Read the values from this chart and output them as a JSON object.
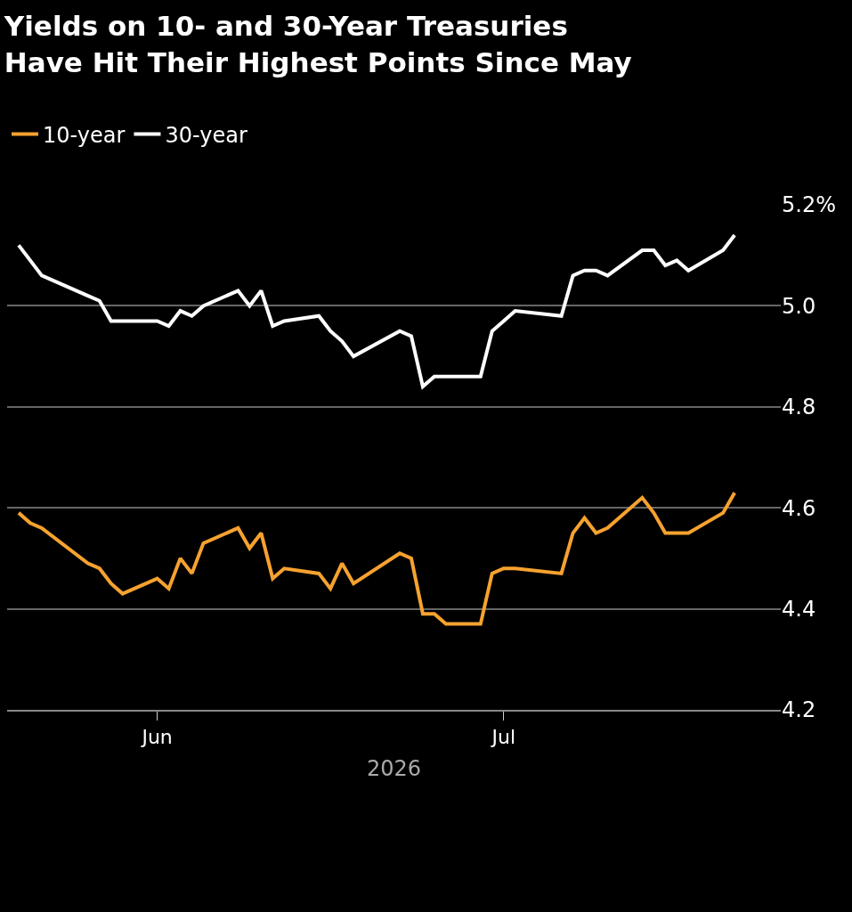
{
  "chart_data": {
    "type": "line",
    "title": "Yields on 10- and 30-Year Treasuries\nHave Hit Their Highest Points Since May",
    "xlabel": "2026",
    "x": [
      "2026-05-20",
      "2026-05-21",
      "2026-05-22",
      "2026-05-26",
      "2026-05-27",
      "2026-05-28",
      "2026-05-29",
      "2026-06-01",
      "2026-06-02",
      "2026-06-03",
      "2026-06-04",
      "2026-06-05",
      "2026-06-08",
      "2026-06-09",
      "2026-06-10",
      "2026-06-11",
      "2026-06-12",
      "2026-06-15",
      "2026-06-16",
      "2026-06-17",
      "2026-06-18",
      "2026-06-22",
      "2026-06-23",
      "2026-06-24",
      "2026-06-25",
      "2026-06-26",
      "2026-06-29",
      "2026-06-30",
      "2026-07-01",
      "2026-07-02",
      "2026-07-06",
      "2026-07-07",
      "2026-07-08",
      "2026-07-09",
      "2026-07-10",
      "2026-07-13",
      "2026-07-14",
      "2026-07-15",
      "2026-07-16",
      "2026-07-17",
      "2026-07-20",
      "2026-07-21"
    ],
    "series": [
      {
        "name": "10-year",
        "color": "#f6a22f",
        "values": [
          4.59,
          4.57,
          4.56,
          4.49,
          4.48,
          4.45,
          4.43,
          4.46,
          4.44,
          4.5,
          4.47,
          4.53,
          4.56,
          4.52,
          4.55,
          4.46,
          4.48,
          4.47,
          4.44,
          4.49,
          4.45,
          4.51,
          4.5,
          4.39,
          4.39,
          4.37,
          4.37,
          4.47,
          4.48,
          4.48,
          4.47,
          4.55,
          4.58,
          4.55,
          4.56,
          4.62,
          4.59,
          4.55,
          4.55,
          4.55,
          4.59,
          4.63
        ]
      },
      {
        "name": "30-year",
        "color": "#ffffff",
        "values": [
          5.12,
          5.09,
          5.06,
          5.02,
          5.01,
          4.97,
          4.97,
          4.97,
          4.96,
          4.99,
          4.98,
          5.0,
          5.03,
          5.0,
          5.03,
          4.96,
          4.97,
          4.98,
          4.95,
          4.93,
          4.9,
          4.95,
          4.94,
          4.84,
          4.86,
          4.86,
          4.86,
          4.95,
          4.97,
          4.99,
          4.98,
          5.06,
          5.07,
          5.07,
          5.06,
          5.11,
          5.11,
          5.08,
          5.09,
          5.07,
          5.11,
          5.14
        ]
      }
    ],
    "xlim": [
      "2026-05-19",
      "2026-07-25"
    ],
    "xticks": [
      {
        "value": "2026-06-01",
        "label": "Jun"
      },
      {
        "value": "2026-07-01",
        "label": "Jul"
      }
    ],
    "ylim": [
      4.2,
      5.2
    ],
    "yticks": [
      4.2,
      4.4,
      4.6,
      4.8,
      {
        "value": 5.0,
        "label": "5.0"
      },
      {
        "value": 5.2,
        "label": "5.2%"
      }
    ],
    "grid": "y",
    "legend": "top left",
    "marker": "none",
    "line_style": "solid"
  }
}
